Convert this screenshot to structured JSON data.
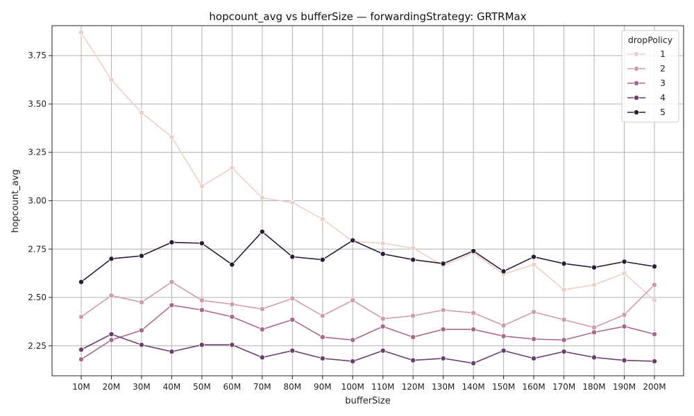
{
  "chart_data": {
    "type": "line",
    "title": "hopcount_avg vs bufferSize — forwardingStrategy: GRTRMax",
    "xlabel": "bufferSize",
    "ylabel": "hopcount_avg",
    "categories": [
      "10M",
      "20M",
      "30M",
      "40M",
      "50M",
      "60M",
      "70M",
      "80M",
      "90M",
      "100M",
      "110M",
      "120M",
      "130M",
      "140M",
      "150M",
      "160M",
      "170M",
      "180M",
      "190M",
      "200M"
    ],
    "ylim": [
      2.095,
      3.905
    ],
    "yticks": [
      2.25,
      2.5,
      2.75,
      3.0,
      3.25,
      3.5,
      3.75
    ],
    "ytick_labels": [
      "2.25",
      "2.50",
      "2.75",
      "3.00",
      "3.25",
      "3.50",
      "3.75"
    ],
    "grid": true,
    "legend": {
      "title": "dropPolicy",
      "placement": "top-right"
    },
    "series": [
      {
        "name": "1",
        "color": "#ecd0c8",
        "values": [
          3.87,
          3.625,
          3.455,
          3.33,
          3.075,
          3.17,
          3.015,
          2.99,
          2.905,
          2.79,
          2.78,
          2.755,
          2.665,
          2.73,
          2.62,
          2.67,
          2.54,
          2.565,
          2.625,
          2.485
        ]
      },
      {
        "name": "2",
        "color": "#d09aaa",
        "values": [
          2.4,
          2.51,
          2.475,
          2.58,
          2.485,
          2.465,
          2.44,
          2.495,
          2.405,
          2.485,
          2.39,
          2.405,
          2.435,
          2.42,
          2.355,
          2.425,
          2.385,
          2.345,
          2.41,
          2.565
        ]
      },
      {
        "name": "3",
        "color": "#a8688a",
        "values": [
          2.18,
          2.28,
          2.33,
          2.46,
          2.435,
          2.4,
          2.335,
          2.385,
          2.295,
          2.28,
          2.35,
          2.295,
          2.335,
          2.335,
          2.3,
          2.285,
          2.28,
          2.32,
          2.35,
          2.31
        ]
      },
      {
        "name": "4",
        "color": "#6a3d6c",
        "values": [
          2.23,
          2.31,
          2.255,
          2.22,
          2.255,
          2.255,
          2.19,
          2.225,
          2.185,
          2.17,
          2.225,
          2.175,
          2.185,
          2.16,
          2.225,
          2.185,
          2.22,
          2.19,
          2.175,
          2.17
        ]
      },
      {
        "name": "5",
        "color": "#2a1b36",
        "values": [
          2.58,
          2.7,
          2.715,
          2.785,
          2.78,
          2.67,
          2.84,
          2.71,
          2.695,
          2.795,
          2.725,
          2.695,
          2.675,
          2.74,
          2.635,
          2.71,
          2.675,
          2.655,
          2.685,
          2.66
        ]
      }
    ]
  }
}
